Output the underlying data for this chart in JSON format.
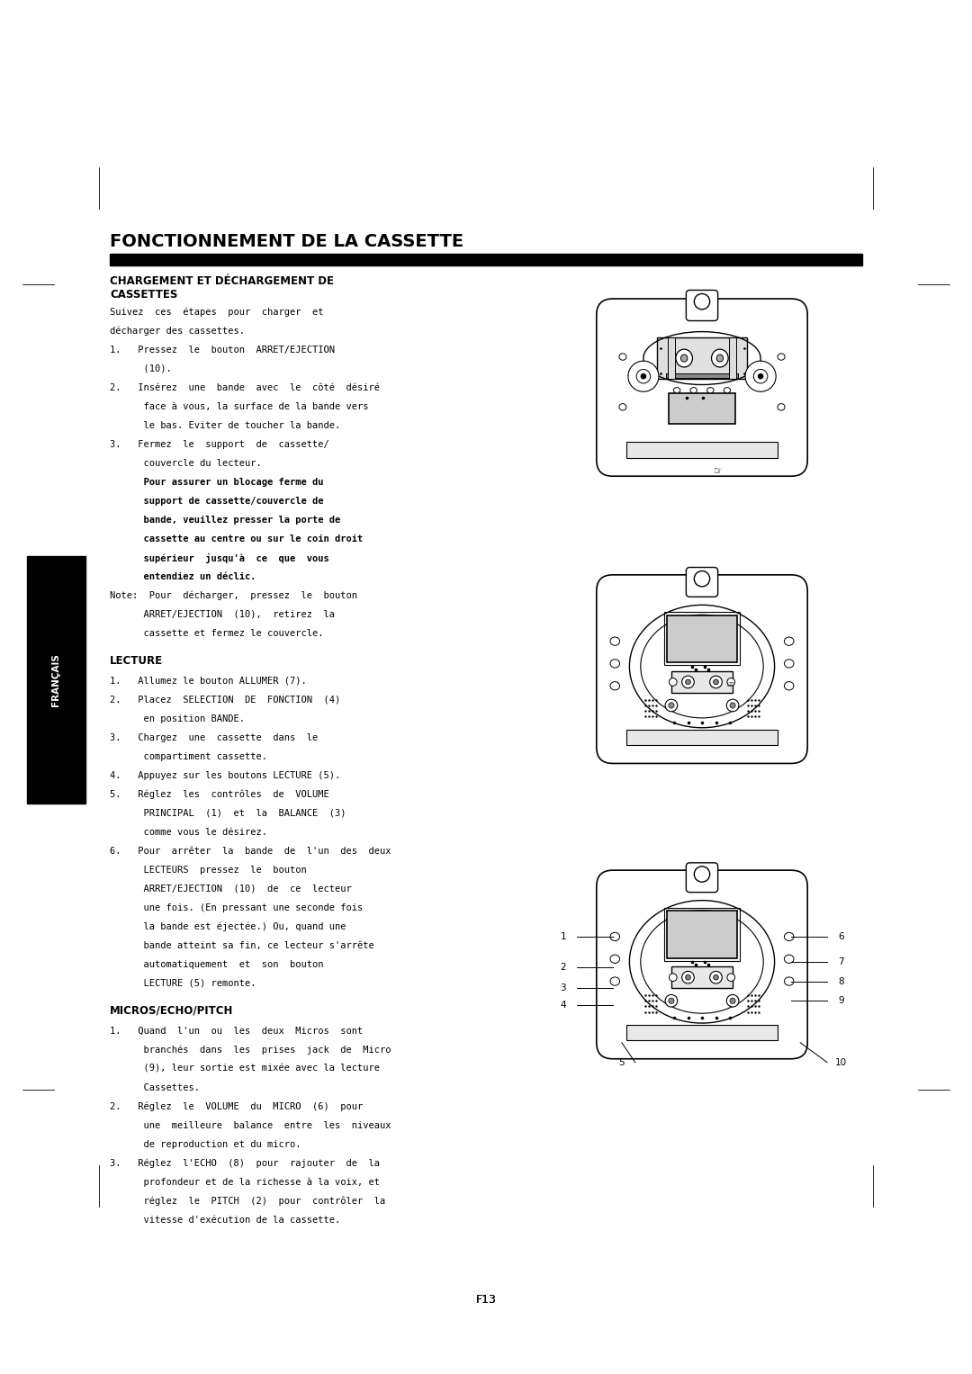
{
  "bg_color": "#ffffff",
  "page_width": 10.8,
  "page_height": 15.27,
  "title": "FONCTIONNEMENT DE LA CASSETTE",
  "francais_label": "FRANÇAIS",
  "page_num": "F13"
}
